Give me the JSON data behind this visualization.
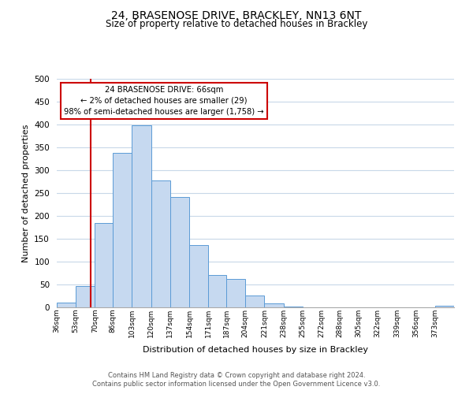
{
  "title": "24, BRASENOSE DRIVE, BRACKLEY, NN13 6NT",
  "subtitle": "Size of property relative to detached houses in Brackley",
  "xlabel": "Distribution of detached houses by size in Brackley",
  "ylabel": "Number of detached properties",
  "footnote1": "Contains HM Land Registry data © Crown copyright and database right 2024.",
  "footnote2": "Contains public sector information licensed under the Open Government Licence v3.0.",
  "bin_labels": [
    "36sqm",
    "53sqm",
    "70sqm",
    "86sqm",
    "103sqm",
    "120sqm",
    "137sqm",
    "154sqm",
    "171sqm",
    "187sqm",
    "204sqm",
    "221sqm",
    "238sqm",
    "255sqm",
    "272sqm",
    "288sqm",
    "305sqm",
    "322sqm",
    "339sqm",
    "356sqm",
    "373sqm"
  ],
  "bar_values": [
    10,
    47,
    185,
    338,
    398,
    278,
    242,
    137,
    70,
    62,
    26,
    8,
    2,
    0,
    0,
    0,
    0,
    0,
    0,
    0,
    3
  ],
  "bar_color": "#c6d9f0",
  "bar_edge_color": "#5b9bd5",
  "ylim": [
    0,
    500
  ],
  "yticks": [
    0,
    50,
    100,
    150,
    200,
    250,
    300,
    350,
    400,
    450,
    500
  ],
  "property_line_x": 66,
  "bin_edges_values": [
    36,
    53,
    70,
    86,
    103,
    120,
    137,
    154,
    171,
    187,
    204,
    221,
    238,
    255,
    272,
    288,
    305,
    322,
    339,
    356,
    373,
    390
  ],
  "annotation_title": "24 BRASENOSE DRIVE: 66sqm",
  "annotation_line1": "← 2% of detached houses are smaller (29)",
  "annotation_line2": "98% of semi-detached houses are larger (1,758) →",
  "annotation_box_color": "#ffffff",
  "annotation_box_edge": "#cc0000",
  "property_line_color": "#cc0000",
  "background_color": "#ffffff",
  "grid_color": "#c8d8e8"
}
